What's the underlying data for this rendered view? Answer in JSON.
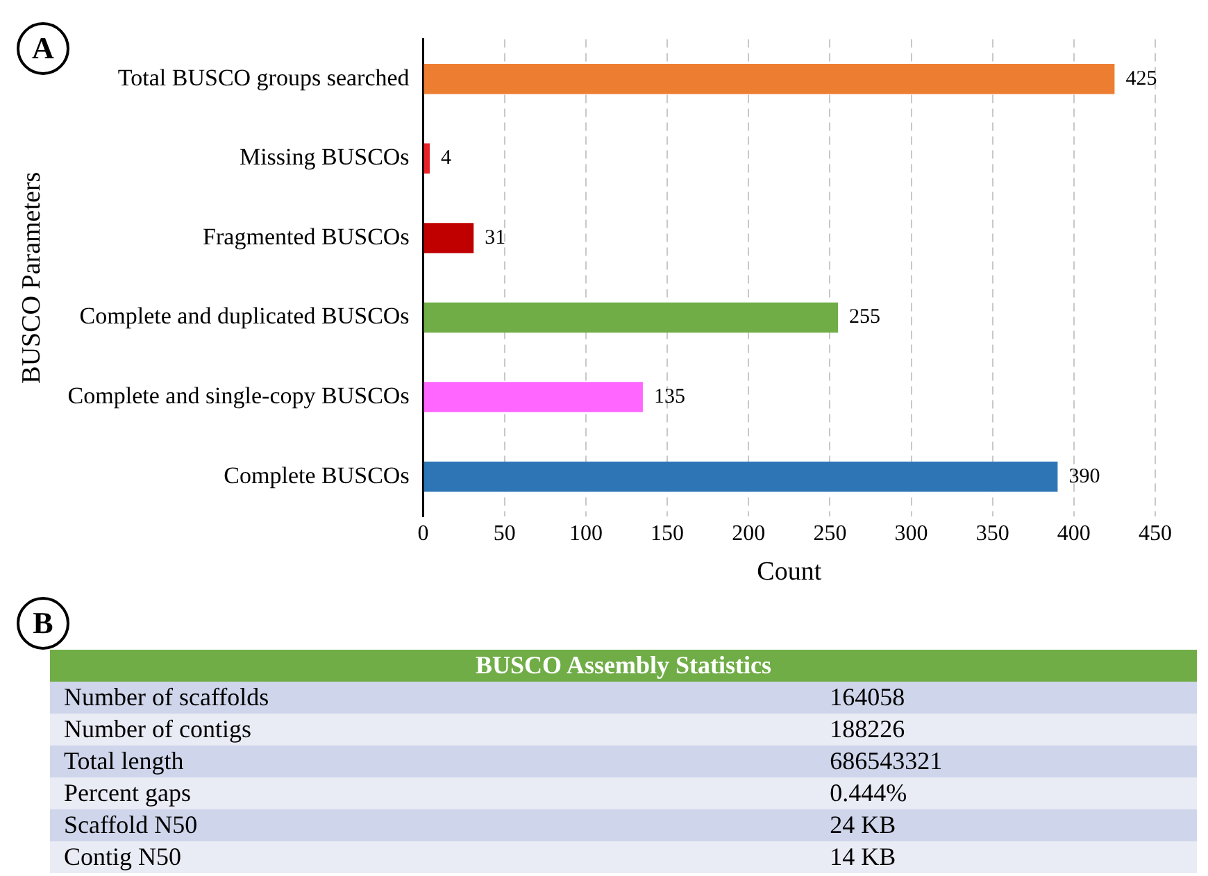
{
  "chart_data": [
    {
      "type": "bar",
      "orientation": "horizontal",
      "annotations": [
        "A"
      ],
      "xlabel": "Count",
      "ylabel": "BUSCO Parameters",
      "categories": [
        "Total BUSCO groups searched",
        "Missing BUSCOs",
        "Fragmented BUSCOs",
        "Complete and duplicated BUSCOs",
        "Complete and single-copy BUSCOs",
        "Complete BUSCOs"
      ],
      "values": [
        425,
        4,
        31,
        255,
        135,
        390
      ],
      "colors": [
        "#ed7d31",
        "#e8242a",
        "#c00000",
        "#70ad47",
        "#ff66ff",
        "#2e75b6"
      ],
      "xlim": [
        0,
        450
      ],
      "xticks": [
        0,
        50,
        100,
        150,
        200,
        250,
        300,
        350,
        400,
        450
      ],
      "grid": "x",
      "data_labels": true,
      "legend": false
    },
    {
      "type": "other",
      "title": "BUSCO Assembly Statistics",
      "annotations": [
        "B",
        "Number of scaffolds",
        "164058",
        "Number of contigs",
        "188226",
        "Total length",
        "686543321",
        "Percent gaps",
        "0.444%",
        "Scaffold N50",
        "24 KB",
        "Contig N50",
        "14 KB"
      ]
    }
  ]
}
